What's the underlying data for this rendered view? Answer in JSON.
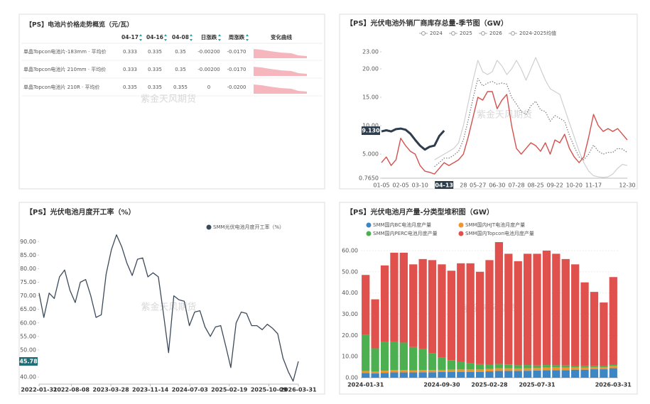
{
  "table": {
    "title": "【PS】电池片价格走势概览（元/瓦）",
    "watermark": "紫金天风期货",
    "headers": [
      "04-17",
      "04-16",
      "04-08",
      "日涨跌",
      "周涨跌",
      "变化曲线"
    ],
    "rows": [
      [
        "单晶Topcon电池片-183mm · 平均价",
        "0.333",
        "0.335",
        "0.35",
        "-0.00200",
        "-0.0170"
      ],
      [
        "单晶Topcon电池片 210mm · 平均价",
        "0.333",
        "0.335",
        "0.35",
        "-0.00200",
        "-0.0170"
      ],
      [
        "单晶Topcon电池片 210R · 平均价",
        "0.335",
        "0.335",
        "0.355",
        "0",
        "-0.0200"
      ]
    ]
  },
  "chart_data": [
    {
      "type": "line",
      "title": "【PS】光伏电池外销厂商库存总量-季节图（GW）",
      "watermark": "紫金天风期货",
      "categories": [
        "01-05",
        null,
        null,
        null,
        "02-05",
        null,
        null,
        null,
        "03-10",
        null,
        null,
        null,
        null,
        "04-13",
        null,
        null,
        null,
        "28",
        null,
        null,
        "05-27",
        null,
        null,
        null,
        "06-30",
        null,
        null,
        null,
        "07-28",
        null,
        null,
        null,
        "08-25",
        null,
        null,
        null,
        "09-22",
        null,
        null,
        null,
        "10-20",
        null,
        null,
        null,
        "11-17",
        null,
        null,
        null,
        null,
        null,
        null,
        "12-30"
      ],
      "ylim": [
        0.765,
        23
      ],
      "yticks": [
        {
          "value": 0.765,
          "label": "0.7650"
        },
        {
          "value": 5,
          "label": "5.000"
        },
        {
          "value": 10,
          "label": "10.00"
        },
        {
          "value": 15,
          "label": "15.00"
        },
        {
          "value": 20,
          "label": "20.00"
        },
        {
          "value": 23,
          "label": "23.00"
        }
      ],
      "annotations": [
        {
          "value": 9.13,
          "label": "9.130"
        }
      ],
      "series": [
        {
          "name": "2024",
          "color": "#cfcfcf",
          "width": 1.2,
          "style": "solid",
          "values": [
            null,
            null,
            null,
            null,
            null,
            null,
            null,
            null,
            null,
            null,
            null,
            4.0,
            4.5,
            5.0,
            5.5,
            6.0,
            7.0,
            10.0,
            14.0,
            18.0,
            21.5,
            19.5,
            19.0,
            19.5,
            21.5,
            20.5,
            19.0,
            20.0,
            21.5,
            20.0,
            18.0,
            20.0,
            22.0,
            20.0,
            18.0,
            16.5,
            16.0,
            15.5,
            13.0,
            10.5,
            8.0,
            5.5,
            3.5,
            2.0,
            1.2,
            1.0,
            0.9,
            1.0,
            1.5,
            2.5,
            3.2,
            3.0
          ]
        },
        {
          "name": "2025",
          "color": "#d2514e",
          "width": 1.4,
          "style": "solid",
          "values": [
            3.5,
            4.5,
            3.0,
            4.0,
            7.8,
            6.5,
            5.5,
            5.0,
            3.0,
            2.0,
            1.8,
            1.5,
            2.5,
            3.5,
            3.0,
            3.5,
            4.0,
            5.0,
            8.0,
            11.5,
            15.0,
            14.5,
            16.0,
            16.0,
            13.0,
            14.5,
            15.5,
            10.0,
            6.0,
            5.0,
            6.0,
            7.0,
            6.5,
            5.5,
            7.0,
            5.0,
            7.5,
            7.0,
            8.5,
            6.0,
            4.5,
            3.5,
            4.5,
            8.0,
            12.0,
            10.0,
            9.0,
            9.5,
            9.0,
            9.5,
            8.5,
            7.5
          ]
        },
        {
          "name": "2026",
          "color": "#2e3d4c",
          "width": 3,
          "style": "solid",
          "values": [
            9.0,
            9.2,
            9.0,
            9.4,
            9.5,
            9.3,
            8.6,
            7.5,
            6.5,
            5.8,
            6.3,
            6.5,
            8.2,
            9.13,
            null,
            null,
            null,
            null,
            null,
            null,
            null,
            null,
            null,
            null,
            null,
            null,
            null,
            null,
            null,
            null,
            null,
            null,
            null,
            null,
            null,
            null,
            null,
            null,
            null,
            null,
            null,
            null,
            null,
            null,
            null,
            null,
            null,
            null,
            null,
            null,
            null,
            null
          ]
        },
        {
          "name": "2024-2025均值",
          "color": "#7a7a7a",
          "width": 1.2,
          "style": "dotted",
          "values": [
            null,
            null,
            null,
            null,
            null,
            null,
            null,
            null,
            null,
            null,
            null,
            2.8,
            3.5,
            4.3,
            4.3,
            4.8,
            5.5,
            7.5,
            11.0,
            14.8,
            18.3,
            17.0,
            17.5,
            17.8,
            17.3,
            17.5,
            17.3,
            15.0,
            13.8,
            12.5,
            12.0,
            13.5,
            14.3,
            12.8,
            12.5,
            10.8,
            11.8,
            11.3,
            10.8,
            8.3,
            6.3,
            4.5,
            4.0,
            5.0,
            6.6,
            5.5,
            5.0,
            5.3,
            5.3,
            6.0,
            5.9,
            5.3
          ]
        }
      ]
    },
    {
      "type": "line",
      "title": "【PS】光伏电池月度开工率（%）",
      "watermark": "紫金天风期货",
      "x": [
        "2022-01-31",
        "2022-02-28",
        "2022-03-31",
        "2022-04-30",
        "2022-05-31",
        "2022-06-30",
        "2022-07-31",
        "2022-08-31",
        "2022-09-30",
        "2022-10-31",
        "2022-11-30",
        "2022-12-31",
        "2023-01-31",
        "2023-02-28",
        "2023-03-31",
        "2023-04-30",
        "2023-05-31",
        "2023-06-30",
        "2023-07-31",
        "2023-08-31",
        "2023-09-30",
        "2023-10-31",
        "2023-11-30",
        "2023-12-31",
        "2024-01-31",
        "2024-02-29",
        "2024-03-31",
        "2024-04-30",
        "2024-05-31",
        "2024-06-30",
        "2024-07-31",
        "2024-08-31",
        "2024-09-30",
        "2024-10-31",
        "2024-11-30",
        "2024-12-31",
        "2025-01-31",
        "2025-02-28",
        "2025-03-31",
        "2025-04-30",
        "2025-05-31",
        "2025-06-30",
        "2025-07-31",
        "2025-08-31",
        "2025-09-30",
        "2025-10-31",
        "2025-11-30",
        "2025-12-31",
        "2026-01-31",
        "2026-02-28",
        "2026-03-31"
      ],
      "xlim": [
        "2022-01-31",
        "2026-03-31"
      ],
      "xticks": [
        "2022-01-31",
        "2022-08-08",
        "2023-03-28",
        "2023-11-14",
        "2024-07-03",
        "2025-02-19",
        "2025-10-09",
        "2026-03-31"
      ],
      "ylim": [
        37.4,
        94
      ],
      "yticks": [
        {
          "value": 40,
          "label": "40.00"
        },
        {
          "value": 45,
          "label": "45.00"
        },
        {
          "value": 50,
          "label": "50.00"
        },
        {
          "value": 55,
          "label": "55.00"
        },
        {
          "value": 60,
          "label": "60.00"
        },
        {
          "value": 65,
          "label": "65.00"
        },
        {
          "value": 70,
          "label": "70.00"
        },
        {
          "value": 75,
          "label": "75.00"
        },
        {
          "value": 80,
          "label": "80.00"
        },
        {
          "value": 85,
          "label": "85.00"
        },
        {
          "value": 90,
          "label": "90.00"
        }
      ],
      "annotations": [
        45.78
      ],
      "series": [
        {
          "name": "SMM光伏电池月度开工率（%）",
          "color": "#3b4a5a",
          "width": 1.3,
          "style": "solid",
          "values": [
            71,
            62,
            71,
            69,
            77,
            79.5,
            72,
            67.5,
            75,
            76,
            70,
            62,
            63,
            78,
            87,
            92.5,
            88,
            82,
            77.5,
            83.5,
            84,
            77,
            78.5,
            77,
            63,
            49,
            70,
            68.5,
            68,
            59,
            64,
            64.5,
            58.5,
            55,
            58.5,
            59,
            51,
            43.5,
            60,
            64,
            63.5,
            59,
            59,
            57.5,
            59.5,
            58,
            56,
            47,
            42,
            38.5,
            45.78
          ]
        }
      ]
    },
    {
      "type": "bar",
      "stacked": true,
      "grid": true,
      "title": "【PS】光伏电池月产量-分类型堆积图（GW）",
      "watermark": "紫金天风期货",
      "categories": [
        "2024-01-31",
        null,
        null,
        null,
        null,
        null,
        null,
        null,
        "2024-09-30",
        null,
        null,
        null,
        null,
        "2025-02-28",
        null,
        null,
        null,
        null,
        "2025-07-31",
        null,
        null,
        null,
        null,
        null,
        null,
        null,
        "2026-03-31"
      ],
      "ylim": [
        0,
        65
      ],
      "yticks": [
        {
          "value": 0,
          "label": "0.00"
        },
        {
          "value": 10,
          "label": "10.00"
        },
        {
          "value": 20,
          "label": "20.00"
        },
        {
          "value": 30,
          "label": "30.00"
        },
        {
          "value": 40,
          "label": "40.00"
        },
        {
          "value": 50,
          "label": "50.00"
        },
        {
          "value": 60,
          "label": "60.00"
        }
      ],
      "series": [
        {
          "name": "SMM国内BC电池月度产量",
          "color": "#3d86c6",
          "values": [
            2.2,
            2.0,
            2.3,
            2.5,
            2.5,
            2.5,
            2.6,
            2.6,
            2.7,
            2.8,
            2.8,
            2.8,
            2.8,
            3.0,
            3.2,
            3.2,
            3.2,
            3.3,
            3.4,
            3.5,
            3.6,
            3.6,
            3.8,
            3.8,
            4.0,
            4.0,
            4.5
          ]
        },
        {
          "name": "SMM国内HJT电池月度产量",
          "color": "#f0962e",
          "values": [
            1.0,
            0.9,
            1.0,
            1.1,
            1.1,
            1.0,
            1.0,
            1.0,
            1.0,
            1.0,
            1.1,
            1.1,
            1.1,
            1.2,
            1.3,
            1.3,
            1.2,
            1.2,
            1.2,
            1.3,
            1.3,
            1.2,
            1.1,
            1.0,
            1.0,
            1.0,
            1.2
          ]
        },
        {
          "name": "SMM国内PERC电池月度产量",
          "color": "#4cb050",
          "values": [
            17.0,
            11.0,
            13.5,
            13.5,
            13.0,
            11.0,
            10.0,
            8.0,
            6.0,
            4.5,
            3.5,
            3.0,
            2.5,
            2.0,
            2.0,
            1.8,
            1.5,
            1.5,
            1.2,
            1.2,
            1.0,
            1.0,
            0.8,
            0.8,
            0.6,
            0.5,
            0.5
          ]
        },
        {
          "name": "SMM国内Topcon电池月度产量",
          "color": "#e0504c",
          "values": [
            28.3,
            23.1,
            36.2,
            41.9,
            42.4,
            39.0,
            42.4,
            43.9,
            43.8,
            42.2,
            46.6,
            47.1,
            43.6,
            49.3,
            57.5,
            52.2,
            49.1,
            52.5,
            52.7,
            54.0,
            52.6,
            50.2,
            47.8,
            39.4,
            34.9,
            30.0,
            41.3
          ]
        }
      ]
    }
  ]
}
